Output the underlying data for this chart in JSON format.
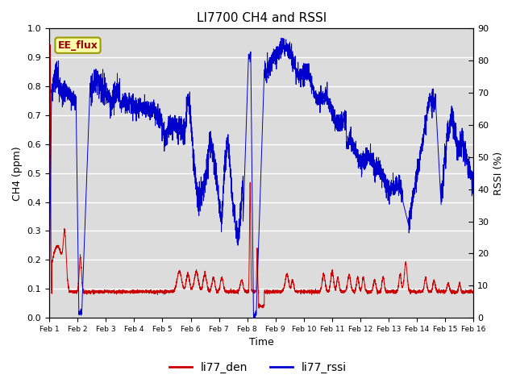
{
  "title": "LI7700 CH4 and RSSI",
  "xlabel": "Time",
  "ylabel_left": "CH4 (ppm)",
  "ylabel_right": "RSSI (%)",
  "ylim_left": [
    0.0,
    1.0
  ],
  "ylim_right": [
    0,
    90
  ],
  "yticks_left": [
    0.0,
    0.1,
    0.2,
    0.3,
    0.4,
    0.5,
    0.6,
    0.7,
    0.8,
    0.9,
    1.0
  ],
  "yticks_right": [
    0,
    10,
    20,
    30,
    40,
    50,
    60,
    70,
    80,
    90
  ],
  "color_red": "#cc0000",
  "color_blue": "#0000cc",
  "background_color": "#dcdcdc",
  "legend_labels": [
    "li77_den",
    "li77_rssi"
  ],
  "annotation_text": "EE_flux",
  "annotation_color": "#990000",
  "annotation_bg": "#ffffaa",
  "annotation_border": "#999900",
  "xtick_labels": [
    "Feb 1",
    "Feb 2",
    "Feb 3",
    "Feb 4",
    "Feb 5",
    "Feb 6",
    "Feb 7",
    "Feb 8",
    "Feb 9",
    "Feb 10",
    "Feb 11",
    "Feb 12",
    "Feb 13",
    "Feb 14",
    "Feb 15",
    "Feb 16"
  ]
}
